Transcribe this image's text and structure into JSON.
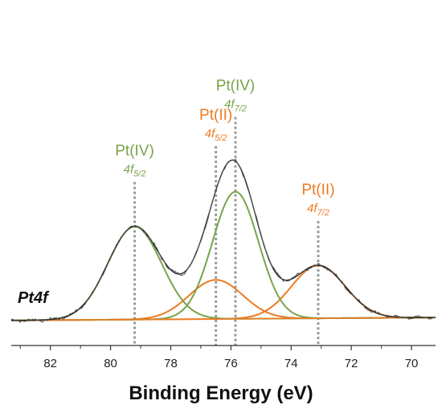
{
  "chart_data": {
    "type": "line",
    "title": "",
    "region_label": "Pt4f",
    "xlabel": "Binding Energy (eV)",
    "ylabel": "",
    "x_reversed": true,
    "xlim": [
      83.3,
      69.2
    ],
    "ylim": [
      0,
      1.15
    ],
    "x_ticks": [
      "82",
      "80",
      "78",
      "76",
      "74",
      "72",
      "70"
    ],
    "grid": false,
    "colors": {
      "raw": "#555555",
      "envelope": "#222222",
      "pt_iv": "#7aa34a",
      "pt_ii": "#ee7a22",
      "marker": "#999999"
    },
    "background": {
      "start": 0.005,
      "end": 0.02
    },
    "components": [
      {
        "species": "Pt(IV)",
        "orbital": "4f",
        "subscript": "5/2",
        "center": 79.2,
        "height": 0.475,
        "fwhm": 2.1,
        "color": "pt_iv"
      },
      {
        "species": "Pt(II)",
        "orbital": "4f",
        "subscript": "5/2",
        "center": 76.5,
        "height": 0.2,
        "fwhm": 2.1,
        "color": "pt_ii"
      },
      {
        "species": "Pt(IV)",
        "orbital": "4f",
        "subscript": "7/2",
        "center": 75.85,
        "height": 0.65,
        "fwhm": 1.8,
        "color": "pt_iv"
      },
      {
        "species": "Pt(II)",
        "orbital": "4f",
        "subscript": "7/2",
        "center": 73.1,
        "height": 0.27,
        "fwhm": 2.1,
        "color": "pt_ii"
      }
    ]
  }
}
